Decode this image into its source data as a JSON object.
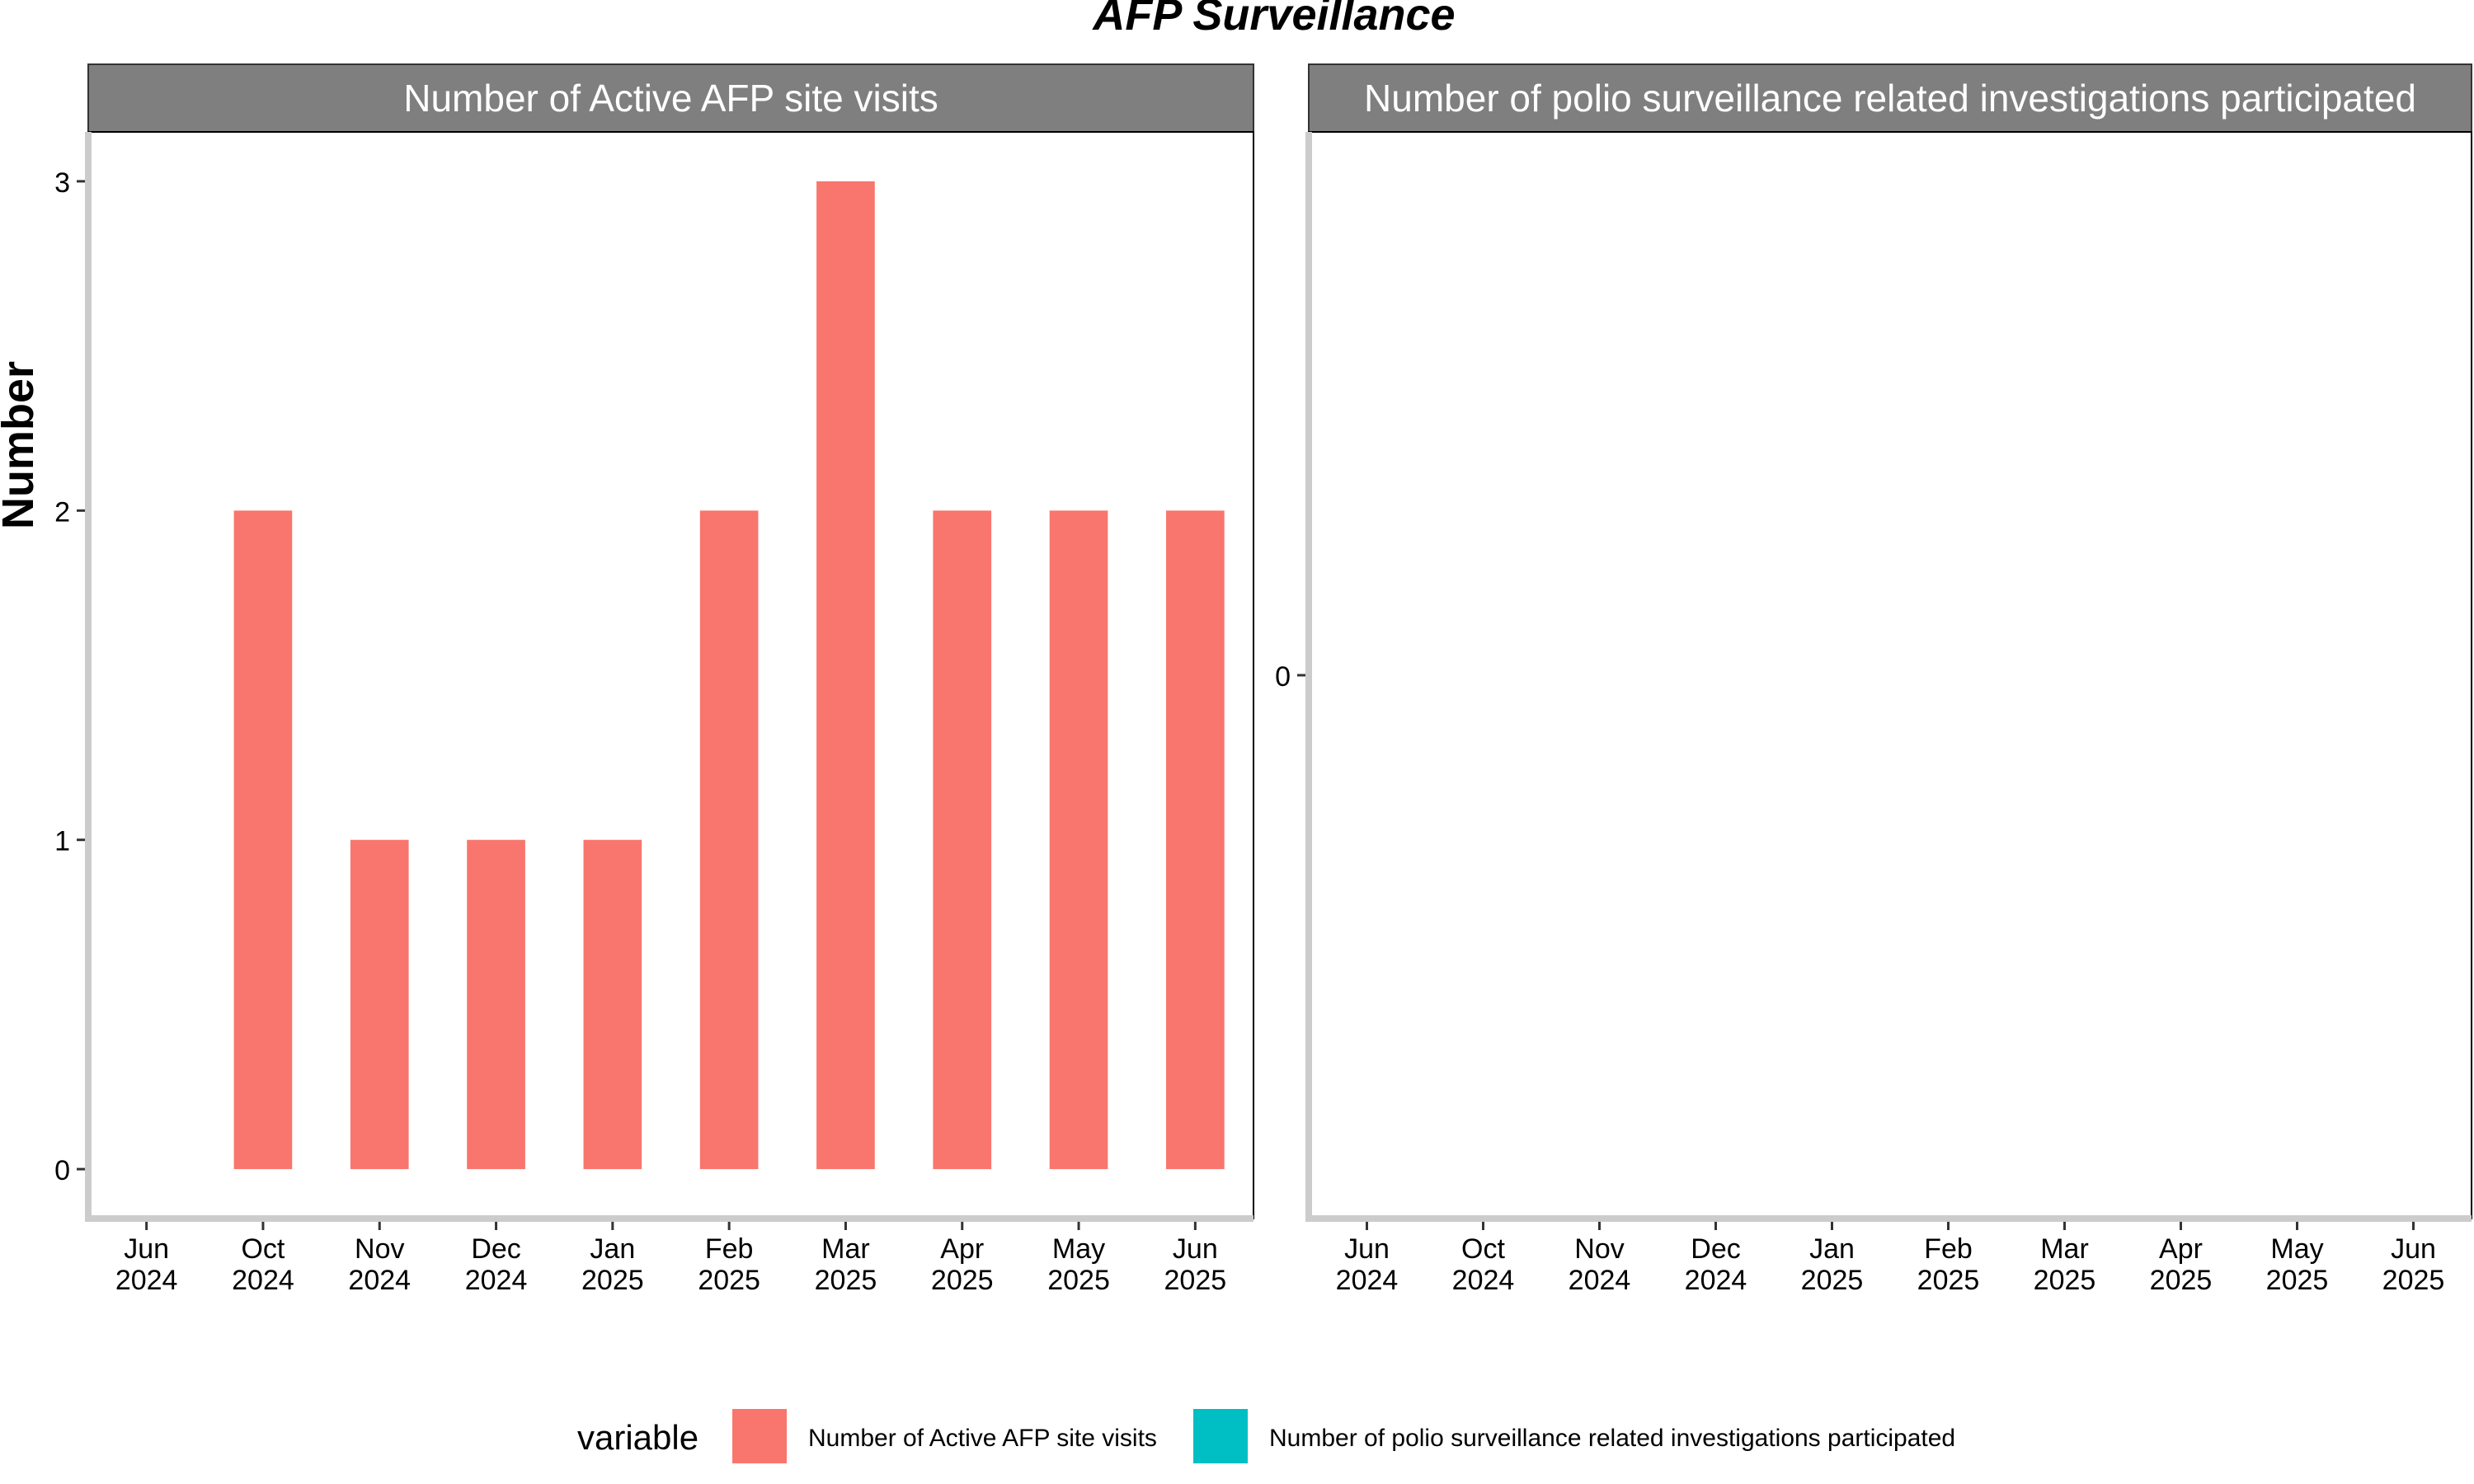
{
  "chart_data": {
    "type": "bar",
    "title": "AFP Surveillance",
    "ylabel": "Number",
    "categories": [
      [
        "Jun",
        "2024"
      ],
      [
        "Oct",
        "2024"
      ],
      [
        "Nov",
        "2024"
      ],
      [
        "Dec",
        "2024"
      ],
      [
        "Jan",
        "2025"
      ],
      [
        "Feb",
        "2025"
      ],
      [
        "Mar",
        "2025"
      ],
      [
        "Apr",
        "2025"
      ],
      [
        "May",
        "2025"
      ],
      [
        "Jun",
        "2025"
      ]
    ],
    "panels": [
      {
        "strip": "Number of Active AFP site visits",
        "series": "Number of Active AFP site visits",
        "values": [
          0,
          2,
          1,
          1,
          1,
          2,
          3,
          2,
          2,
          2
        ],
        "ylim": [
          -0.15,
          3.15
        ],
        "yticks": [
          0,
          1,
          2,
          3
        ]
      },
      {
        "strip": "Number of polio surveillance related investigations participated",
        "series": "Number of polio surveillance related investigations participated",
        "values": [],
        "ylim": [
          -1,
          1
        ],
        "yticks": [
          0
        ]
      }
    ],
    "legend": {
      "title": "variable",
      "position": "bottom",
      "items": [
        {
          "label": "Number of Active AFP site visits",
          "color": "#F8766D"
        },
        {
          "label": "Number of polio surveillance related investigations participated",
          "color": "#00BFC4"
        }
      ]
    },
    "grid": false,
    "strip_background": "#7F7F7F"
  }
}
